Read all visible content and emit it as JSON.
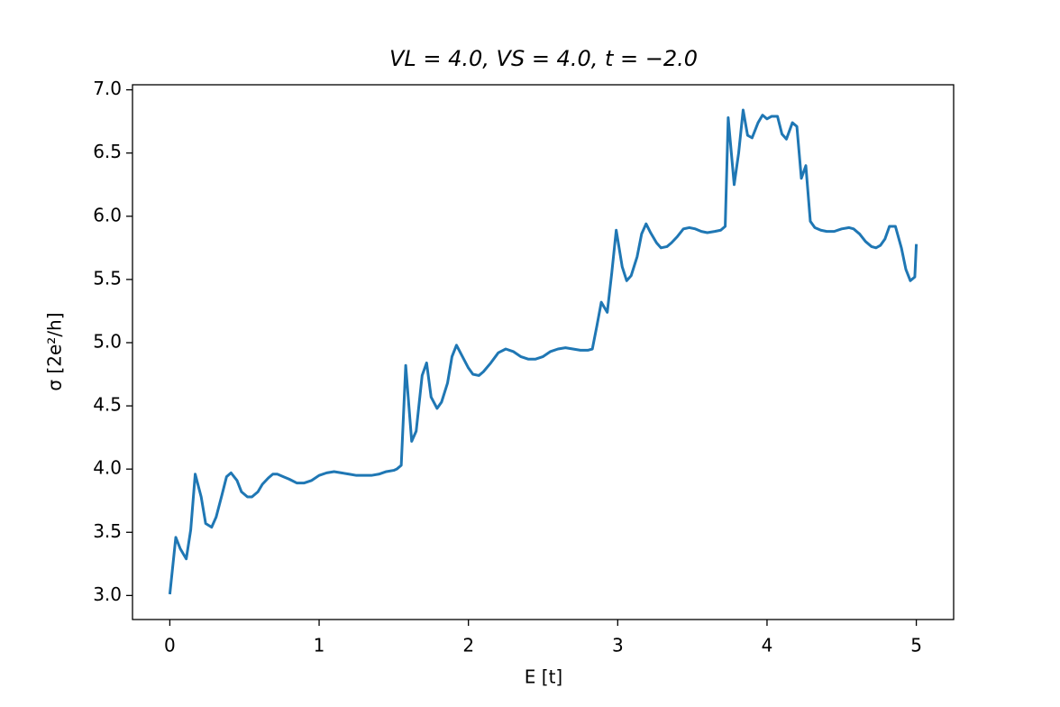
{
  "chart_data": {
    "type": "line",
    "title": "VL = 4.0, VS = 4.0, t = −2.0",
    "xlabel": "E [t]",
    "ylabel": "σ [2e²/h]",
    "color": "#1f77b4",
    "xlim": [
      -0.25,
      5.25
    ],
    "ylim": [
      2.81,
      7.04
    ],
    "xticks": [
      0,
      1,
      2,
      3,
      4,
      5
    ],
    "yticks": [
      {
        "value": 3,
        "label": "3.0"
      },
      {
        "value": 3.5,
        "label": "3.5"
      },
      {
        "value": 4,
        "label": "4.0"
      },
      {
        "value": 4.5,
        "label": "4.5"
      },
      {
        "value": 5,
        "label": "5.0"
      },
      {
        "value": 5.5,
        "label": "5.5"
      },
      {
        "value": 6,
        "label": "6.0"
      },
      {
        "value": 6.5,
        "label": "6.5"
      },
      {
        "value": 7,
        "label": "7.0"
      }
    ],
    "grid": false,
    "x": [
      0,
      0.04,
      0.07,
      0.11,
      0.14,
      0.17,
      0.21,
      0.24,
      0.28,
      0.31,
      0.35,
      0.38,
      0.41,
      0.45,
      0.48,
      0.52,
      0.55,
      0.59,
      0.62,
      0.66,
      0.69,
      0.72,
      0.76,
      0.8,
      0.85,
      0.9,
      0.95,
      1.0,
      1.05,
      1.1,
      1.15,
      1.2,
      1.25,
      1.3,
      1.35,
      1.4,
      1.45,
      1.5,
      1.52,
      1.55,
      1.58,
      1.62,
      1.65,
      1.69,
      1.72,
      1.75,
      1.79,
      1.82,
      1.86,
      1.89,
      1.92,
      1.96,
      2.0,
      2.03,
      2.07,
      2.1,
      2.15,
      2.2,
      2.25,
      2.3,
      2.35,
      2.4,
      2.45,
      2.5,
      2.55,
      2.6,
      2.65,
      2.7,
      2.75,
      2.8,
      2.83,
      2.86,
      2.89,
      2.93,
      2.96,
      2.99,
      3.03,
      3.06,
      3.09,
      3.13,
      3.16,
      3.19,
      3.22,
      3.26,
      3.29,
      3.33,
      3.36,
      3.4,
      3.44,
      3.48,
      3.52,
      3.56,
      3.6,
      3.65,
      3.69,
      3.72,
      3.74,
      3.78,
      3.81,
      3.84,
      3.87,
      3.9,
      3.94,
      3.97,
      4.0,
      4.03,
      4.07,
      4.1,
      4.13,
      4.17,
      4.2,
      4.23,
      4.26,
      4.29,
      4.32,
      4.36,
      4.4,
      4.45,
      4.5,
      4.55,
      4.58,
      4.62,
      4.66,
      4.7,
      4.73,
      4.76,
      4.79,
      4.82,
      4.86,
      4.9,
      4.93,
      4.96,
      4.99,
      5.0
    ],
    "values": [
      3.01,
      3.46,
      3.37,
      3.29,
      3.52,
      3.96,
      3.78,
      3.57,
      3.54,
      3.62,
      3.8,
      3.94,
      3.97,
      3.91,
      3.82,
      3.78,
      3.78,
      3.82,
      3.88,
      3.93,
      3.96,
      3.96,
      3.94,
      3.92,
      3.89,
      3.89,
      3.91,
      3.95,
      3.97,
      3.98,
      3.97,
      3.96,
      3.95,
      3.95,
      3.95,
      3.96,
      3.98,
      3.99,
      4.0,
      4.03,
      4.82,
      4.22,
      4.3,
      4.74,
      4.84,
      4.57,
      4.48,
      4.53,
      4.68,
      4.89,
      4.98,
      4.89,
      4.8,
      4.75,
      4.74,
      4.77,
      4.84,
      4.92,
      4.95,
      4.93,
      4.89,
      4.87,
      4.87,
      4.89,
      4.93,
      4.95,
      4.96,
      4.95,
      4.94,
      4.94,
      4.95,
      5.13,
      5.32,
      5.24,
      5.55,
      5.89,
      5.6,
      5.49,
      5.53,
      5.68,
      5.86,
      5.94,
      5.87,
      5.79,
      5.75,
      5.76,
      5.79,
      5.84,
      5.9,
      5.91,
      5.9,
      5.88,
      5.87,
      5.88,
      5.89,
      5.92,
      6.78,
      6.25,
      6.5,
      6.84,
      6.64,
      6.62,
      6.74,
      6.8,
      6.77,
      6.79,
      6.79,
      6.65,
      6.61,
      6.74,
      6.71,
      6.3,
      6.4,
      5.96,
      5.91,
      5.89,
      5.88,
      5.88,
      5.9,
      5.91,
      5.9,
      5.86,
      5.8,
      5.76,
      5.75,
      5.77,
      5.82,
      5.92,
      5.92,
      5.75,
      5.58,
      5.49,
      5.52,
      5.78
    ]
  }
}
